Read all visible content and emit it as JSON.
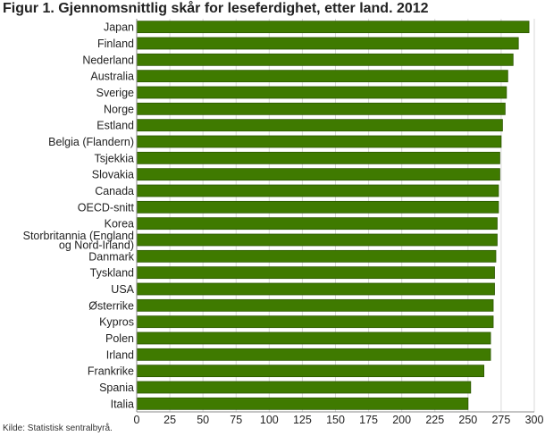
{
  "chart_data": {
    "type": "bar",
    "orientation": "horizontal",
    "title": "Figur 1. Gjennomsnittlig skår for leseferdighet, etter land. 2012",
    "source": "Kilde: Statistisk sentralbyrå.",
    "categories": [
      "Japan",
      "Finland",
      "Nederland",
      "Australia",
      "Sverige",
      "Norge",
      "Estland",
      "Belgia (Flandern)",
      "Tsjekkia",
      "Slovakia",
      "Canada",
      "OECD-snitt",
      "Korea",
      "Storbritannia (England og Nord-Irland)",
      "Danmark",
      "Tyskland",
      "USA",
      "Østerrike",
      "Kypros",
      "Polen",
      "Irland",
      "Frankrike",
      "Spania",
      "Italia"
    ],
    "category_label_lines": {
      "Storbritannia (England og Nord-Irland)": [
        "Storbritannia (England",
        "og Nord-Irland)"
      ]
    },
    "values": [
      296,
      288,
      284,
      280,
      279,
      278,
      276,
      275,
      274,
      274,
      273,
      273,
      272,
      272,
      271,
      270,
      270,
      269,
      269,
      267,
      267,
      262,
      252,
      250
    ],
    "xlim": [
      0,
      300
    ],
    "xticks": [
      0,
      25,
      50,
      75,
      100,
      125,
      150,
      175,
      200,
      225,
      250,
      275,
      300
    ],
    "grid": true,
    "legend": "none",
    "colors": {
      "bar_fill": "#3f7a00",
      "bar_stroke": "#2b5600",
      "grid": "#d9d9d9",
      "text": "#222222"
    }
  }
}
